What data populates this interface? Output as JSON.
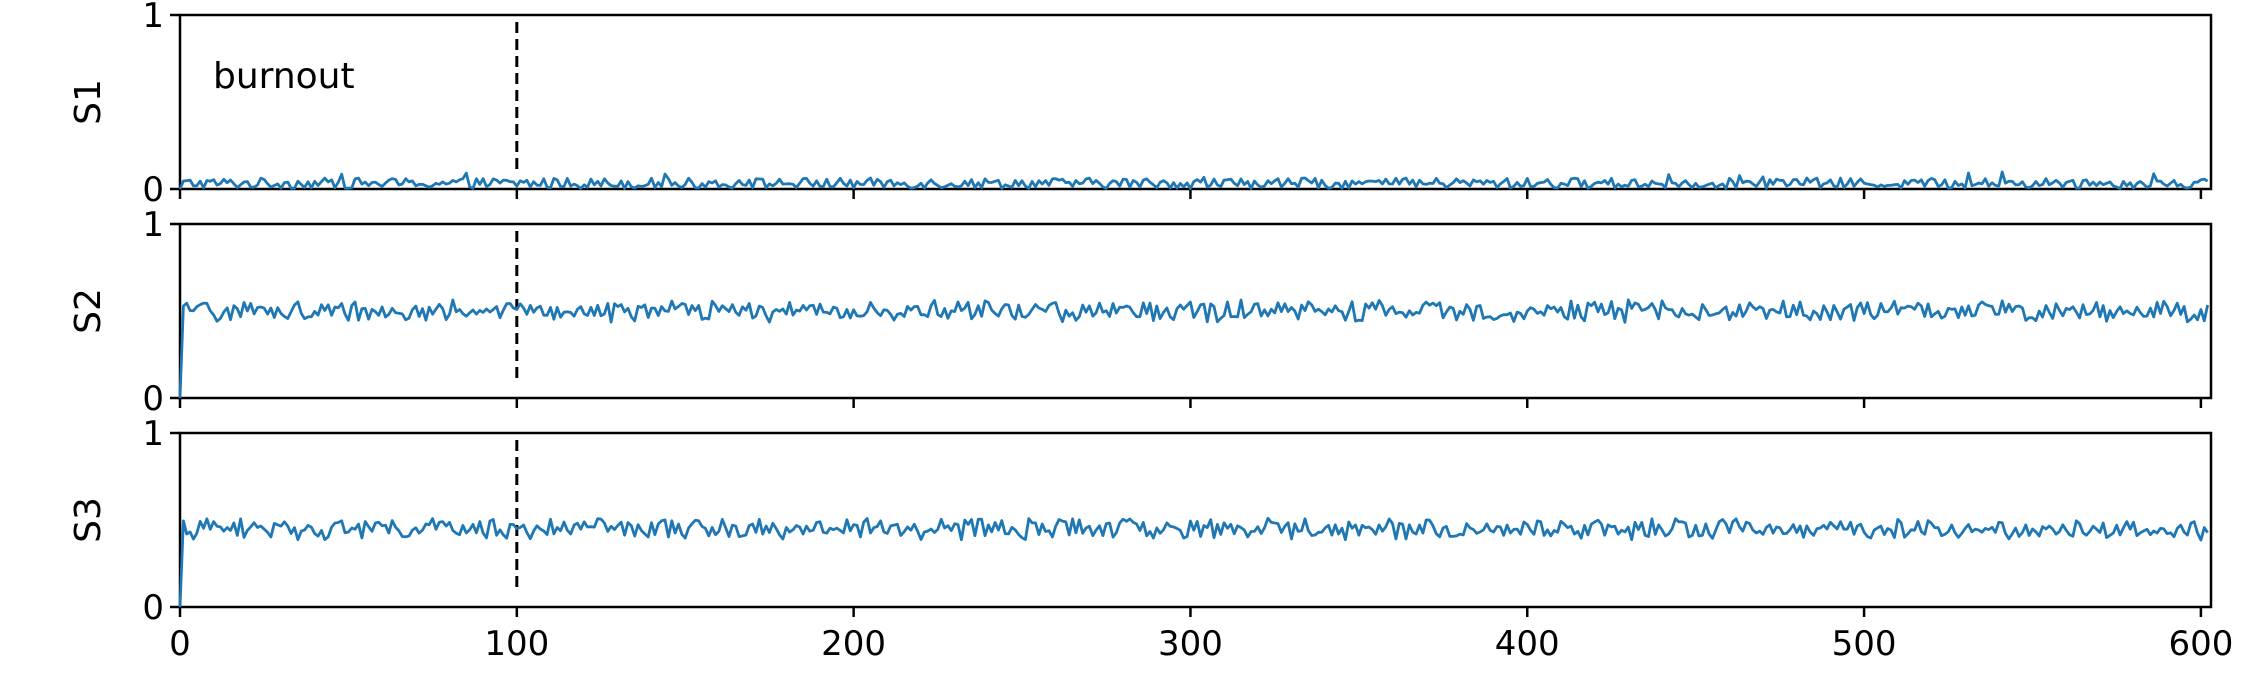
{
  "chart_data": {
    "type": "line",
    "layout": "3 vertically stacked panels sharing the x axis",
    "x_axis": {
      "range": [
        0,
        603
      ],
      "ticks": [
        0,
        100,
        200,
        300,
        400,
        500,
        600
      ],
      "tick_labels": [
        "0",
        "100",
        "200",
        "300",
        "400",
        "500",
        "600"
      ]
    },
    "burnout": {
      "x": 100,
      "label": "burnout",
      "style": "dashed black vertical line"
    },
    "line_color": "#1f77b4",
    "grid": false,
    "panels": [
      {
        "ylabel": "S1",
        "ylim": [
          0,
          1
        ],
        "yticks": [
          "0",
          "1"
        ],
        "series": {
          "description": "noisy trace near zero",
          "start": 0.0,
          "baseline": 0.03,
          "noise_amplitude": 0.05,
          "max_approx": 0.15,
          "num_points": 603
        }
      },
      {
        "ylabel": "S2",
        "ylim": [
          0,
          1
        ],
        "yticks": [
          "0",
          "1"
        ],
        "series": {
          "description": "jumps from 0 at x=0, then fluctuates around 0.5",
          "start": 0.0,
          "baseline": 0.5,
          "noise_amplitude": 0.05,
          "range_approx": [
            0.41,
            0.63
          ],
          "num_points": 603
        }
      },
      {
        "ylabel": "S3",
        "ylim": [
          0,
          1
        ],
        "yticks": [
          "0",
          "1"
        ],
        "series": {
          "description": "jumps from 0 at x=0, then fluctuates around 0.45",
          "start": 0.0,
          "baseline": 0.45,
          "noise_amplitude": 0.05,
          "range_approx": [
            0.33,
            0.59
          ],
          "num_points": 603
        }
      }
    ]
  }
}
